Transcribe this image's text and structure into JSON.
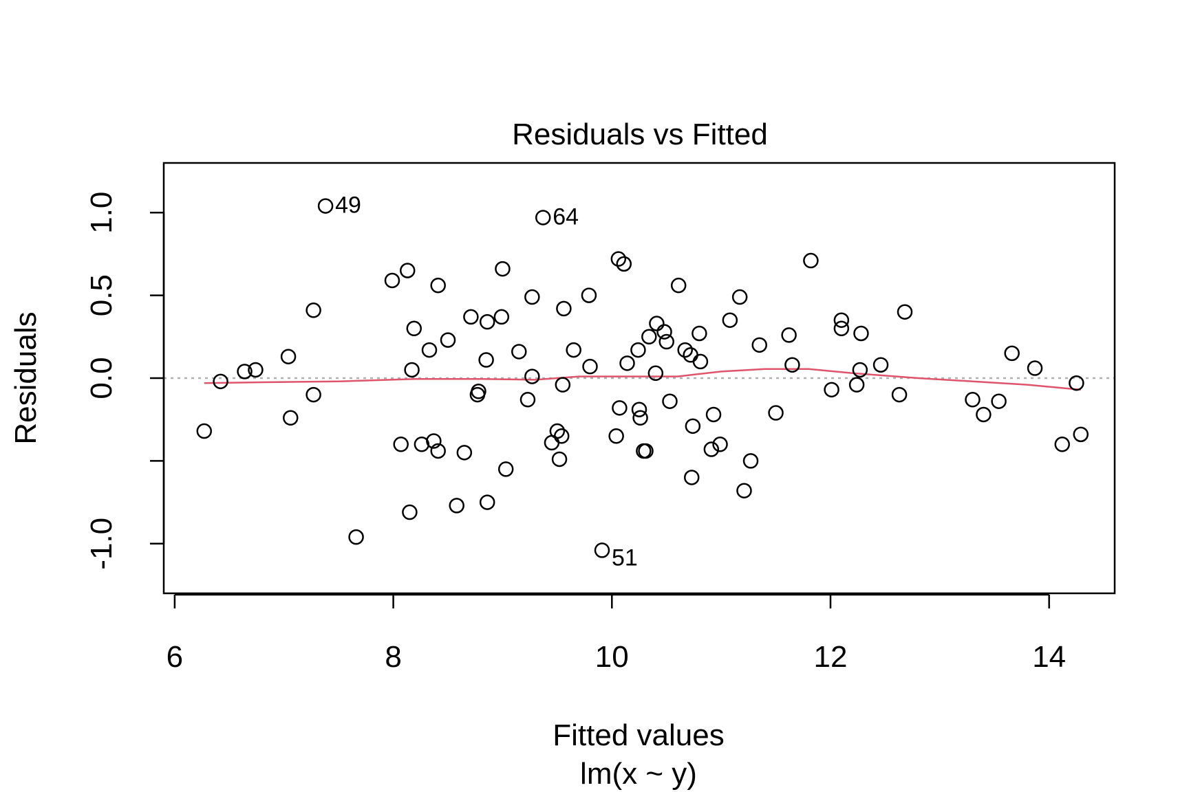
{
  "chart_data": {
    "type": "scatter",
    "title": "Residuals vs Fitted",
    "xlabel": "Fitted values",
    "sublabel": "lm(x ~ y)",
    "ylabel": "Residuals",
    "xlim": [
      5.9,
      14.6
    ],
    "ylim": [
      -1.3,
      1.3
    ],
    "xticks": [
      6,
      8,
      10,
      12,
      14
    ],
    "xtick_labels": [
      "6",
      "8",
      "10",
      "12",
      "14"
    ],
    "yticks": [
      -1.0,
      -0.5,
      0.0,
      0.5,
      1.0
    ],
    "ytick_labels": [
      "-1.0",
      "",
      "0.0",
      "0.5",
      "1.0"
    ],
    "reference_line": {
      "y": 0,
      "style": "dotted",
      "color": "#b0b0b0"
    },
    "point_color": "#000000",
    "smooth_color": "#DF536B",
    "labeled_points": [
      {
        "label": "49",
        "x": 7.38,
        "y": 1.04
      },
      {
        "label": "64",
        "x": 9.37,
        "y": 0.97
      },
      {
        "label": "51",
        "x": 9.91,
        "y": -1.04
      }
    ],
    "points": [
      [
        6.27,
        -0.32
      ],
      [
        6.42,
        -0.02
      ],
      [
        6.64,
        0.04
      ],
      [
        6.74,
        0.05
      ],
      [
        7.04,
        0.13
      ],
      [
        7.06,
        -0.24
      ],
      [
        7.27,
        0.41
      ],
      [
        7.27,
        -0.1
      ],
      [
        7.66,
        -0.96
      ],
      [
        7.99,
        0.59
      ],
      [
        8.07,
        -0.4
      ],
      [
        8.13,
        0.65
      ],
      [
        8.15,
        -0.81
      ],
      [
        8.17,
        0.05
      ],
      [
        8.19,
        0.3
      ],
      [
        8.26,
        -0.4
      ],
      [
        8.33,
        0.17
      ],
      [
        8.37,
        -0.38
      ],
      [
        8.41,
        -0.44
      ],
      [
        8.41,
        0.56
      ],
      [
        8.5,
        0.23
      ],
      [
        8.58,
        -0.77
      ],
      [
        8.65,
        -0.45
      ],
      [
        8.71,
        0.37
      ],
      [
        8.77,
        -0.1
      ],
      [
        8.78,
        -0.08
      ],
      [
        8.85,
        0.11
      ],
      [
        8.86,
        0.34
      ],
      [
        8.86,
        -0.75
      ],
      [
        8.99,
        0.37
      ],
      [
        9.0,
        0.66
      ],
      [
        9.03,
        -0.55
      ],
      [
        9.15,
        0.16
      ],
      [
        9.23,
        -0.13
      ],
      [
        9.27,
        0.01
      ],
      [
        9.27,
        0.49
      ],
      [
        9.45,
        -0.39
      ],
      [
        9.5,
        -0.32
      ],
      [
        9.52,
        -0.49
      ],
      [
        9.54,
        -0.35
      ],
      [
        9.55,
        -0.04
      ],
      [
        9.56,
        0.42
      ],
      [
        9.65,
        0.17
      ],
      [
        9.79,
        0.5
      ],
      [
        9.8,
        0.07
      ],
      [
        10.04,
        -0.35
      ],
      [
        10.06,
        0.72
      ],
      [
        10.07,
        -0.18
      ],
      [
        10.11,
        0.69
      ],
      [
        10.14,
        0.09
      ],
      [
        10.24,
        0.17
      ],
      [
        10.25,
        -0.19
      ],
      [
        10.26,
        -0.24
      ],
      [
        10.29,
        -0.44
      ],
      [
        10.31,
        -0.44
      ],
      [
        10.34,
        0.25
      ],
      [
        10.4,
        0.03
      ],
      [
        10.41,
        0.33
      ],
      [
        10.48,
        0.28
      ],
      [
        10.5,
        0.22
      ],
      [
        10.53,
        -0.14
      ],
      [
        10.61,
        0.56
      ],
      [
        10.67,
        0.17
      ],
      [
        10.72,
        0.14
      ],
      [
        10.73,
        -0.6
      ],
      [
        10.74,
        -0.29
      ],
      [
        10.8,
        0.27
      ],
      [
        10.81,
        0.1
      ],
      [
        10.91,
        -0.43
      ],
      [
        10.93,
        -0.22
      ],
      [
        10.99,
        -0.4
      ],
      [
        11.08,
        0.35
      ],
      [
        11.17,
        0.49
      ],
      [
        11.21,
        -0.68
      ],
      [
        11.27,
        -0.5
      ],
      [
        11.35,
        0.2
      ],
      [
        11.5,
        -0.21
      ],
      [
        11.62,
        0.26
      ],
      [
        11.65,
        0.08
      ],
      [
        11.82,
        0.71
      ],
      [
        12.01,
        -0.07
      ],
      [
        12.1,
        0.35
      ],
      [
        12.1,
        0.3
      ],
      [
        12.24,
        -0.04
      ],
      [
        12.27,
        0.05
      ],
      [
        12.28,
        0.27
      ],
      [
        12.46,
        0.08
      ],
      [
        12.63,
        -0.1
      ],
      [
        12.68,
        0.4
      ],
      [
        13.3,
        -0.13
      ],
      [
        13.4,
        -0.22
      ],
      [
        13.54,
        -0.14
      ],
      [
        13.66,
        0.15
      ],
      [
        13.87,
        0.06
      ],
      [
        14.12,
        -0.4
      ],
      [
        14.25,
        -0.03
      ],
      [
        14.29,
        -0.34
      ]
    ],
    "smooth": [
      [
        6.27,
        -0.03
      ],
      [
        6.8,
        -0.025
      ],
      [
        7.5,
        -0.02
      ],
      [
        8.2,
        -0.005
      ],
      [
        8.8,
        -0.005
      ],
      [
        9.3,
        -0.01
      ],
      [
        9.7,
        0.01
      ],
      [
        10.2,
        0.01
      ],
      [
        10.6,
        0.01
      ],
      [
        11.0,
        0.04
      ],
      [
        11.4,
        0.055
      ],
      [
        11.8,
        0.055
      ],
      [
        12.2,
        0.03
      ],
      [
        12.8,
        0.0
      ],
      [
        13.3,
        -0.02
      ],
      [
        13.8,
        -0.04
      ],
      [
        14.29,
        -0.07
      ]
    ]
  }
}
